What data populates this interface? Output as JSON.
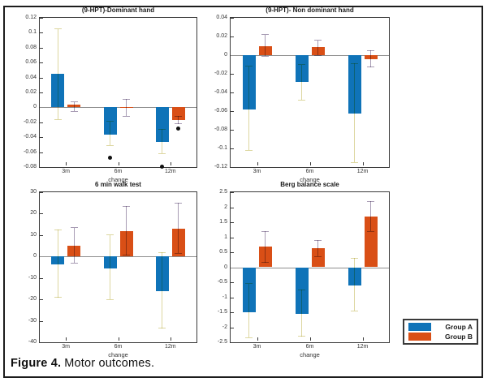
{
  "figure": {
    "caption_label": "Figure 4.",
    "caption_text": "Motor outcomes."
  },
  "legend": {
    "position": "bottom-right",
    "items": [
      {
        "label": "Group A",
        "color": "#0f73b8"
      },
      {
        "label": "Group B",
        "color": "#d94f16"
      }
    ]
  },
  "colors": {
    "group_a": "#0f73b8",
    "group_b": "#d94f16",
    "err_group_a": "#ddd7a0",
    "err_group_b": "#a89cb4",
    "axis": "#3a3a3a",
    "zero_line": "#8e8e8e",
    "outlier": "#111111"
  },
  "chart_data": [
    {
      "type": "bar",
      "title": "(9-HPT)-Dominant hand",
      "xlabel": "change",
      "categories": [
        "3m",
        "6m",
        "12m"
      ],
      "ylim": [
        -0.08,
        0.12
      ],
      "yticks": [
        "0.12",
        "0.1",
        "0.08",
        "0.06",
        "0.04",
        "0.02",
        "0",
        "-0.02",
        "-0.04",
        "-0.06",
        "-0.08"
      ],
      "grid": false,
      "legend_position": "none",
      "series": [
        {
          "name": "Group A",
          "values": [
            0.045,
            -0.036,
            -0.046
          ],
          "err_lo": [
            -0.016,
            -0.051,
            -0.062
          ],
          "err_hi": [
            0.105,
            -0.019,
            -0.029
          ]
        },
        {
          "name": "Group B",
          "values": [
            0.004,
            -0.001,
            -0.017
          ],
          "err_lo": [
            -0.005,
            -0.012,
            -0.022
          ],
          "err_hi": [
            0.007,
            0.011,
            -0.012
          ]
        }
      ],
      "outliers": [
        {
          "series": 0,
          "cat": 1,
          "value": -0.067
        },
        {
          "series": 0,
          "cat": 2,
          "value": -0.079
        },
        {
          "series": 1,
          "cat": 2,
          "value": -0.028
        }
      ]
    },
    {
      "type": "bar",
      "title": "(9-HPT)- Non dominant hand",
      "xlabel": "change",
      "categories": [
        "3m",
        "6m",
        "12m"
      ],
      "ylim": [
        -0.12,
        0.04
      ],
      "yticks": [
        "0.04",
        "0.02",
        "0",
        "-0.02",
        "-0.04",
        "-0.06",
        "-0.08",
        "-0.1",
        "-0.12"
      ],
      "grid": false,
      "legend_position": "none",
      "series": [
        {
          "name": "Group A",
          "values": [
            -0.058,
            -0.029,
            -0.063
          ],
          "err_lo": [
            -0.102,
            -0.048,
            -0.115
          ],
          "err_hi": [
            -0.012,
            -0.01,
            -0.009
          ]
        },
        {
          "name": "Group B",
          "values": [
            0.01,
            0.009,
            -0.004
          ],
          "err_lo": [
            -0.001,
            0.0,
            -0.013
          ],
          "err_hi": [
            0.022,
            0.016,
            0.005
          ]
        }
      ],
      "outliers": []
    },
    {
      "type": "bar",
      "title": "6 min walk test",
      "xlabel": "change",
      "categories": [
        "3m",
        "6m",
        "12m"
      ],
      "ylim": [
        -40,
        30
      ],
      "yticks": [
        "30",
        "20",
        "10",
        "0",
        "-10",
        "-20",
        "-30",
        "-40"
      ],
      "grid": false,
      "legend_position": "none",
      "series": [
        {
          "name": "Group A",
          "values": [
            -3.5,
            -5.5,
            -16
          ],
          "err_lo": [
            -19,
            -20,
            -33.5
          ],
          "err_hi": [
            12.5,
            10,
            2
          ]
        },
        {
          "name": "Group B",
          "values": [
            5,
            12,
            13
          ],
          "err_lo": [
            -3,
            0.5,
            1.5
          ],
          "err_hi": [
            13.5,
            23.5,
            25
          ]
        }
      ],
      "outliers": []
    },
    {
      "type": "bar",
      "title": "Berg balance scale",
      "xlabel": "change",
      "categories": [
        "3m",
        "6m",
        "12m"
      ],
      "ylim": [
        -2.5,
        2.5
      ],
      "yticks": [
        "2.5",
        "2",
        "1.5",
        "1",
        "0.5",
        "0",
        "-0.5",
        "-1",
        "-1.5",
        "-2",
        "-2.5"
      ],
      "grid": false,
      "legend_position": "none",
      "series": [
        {
          "name": "Group A",
          "values": [
            -1.5,
            -1.55,
            -0.6
          ],
          "err_lo": [
            -2.35,
            -2.3,
            -1.45
          ],
          "err_hi": [
            -0.55,
            -0.75,
            0.3
          ]
        },
        {
          "name": "Group B",
          "values": [
            0.68,
            0.63,
            1.7
          ],
          "err_lo": [
            0.15,
            0.36,
            1.2
          ],
          "err_hi": [
            1.2,
            0.9,
            2.2
          ]
        }
      ],
      "outliers": []
    }
  ]
}
